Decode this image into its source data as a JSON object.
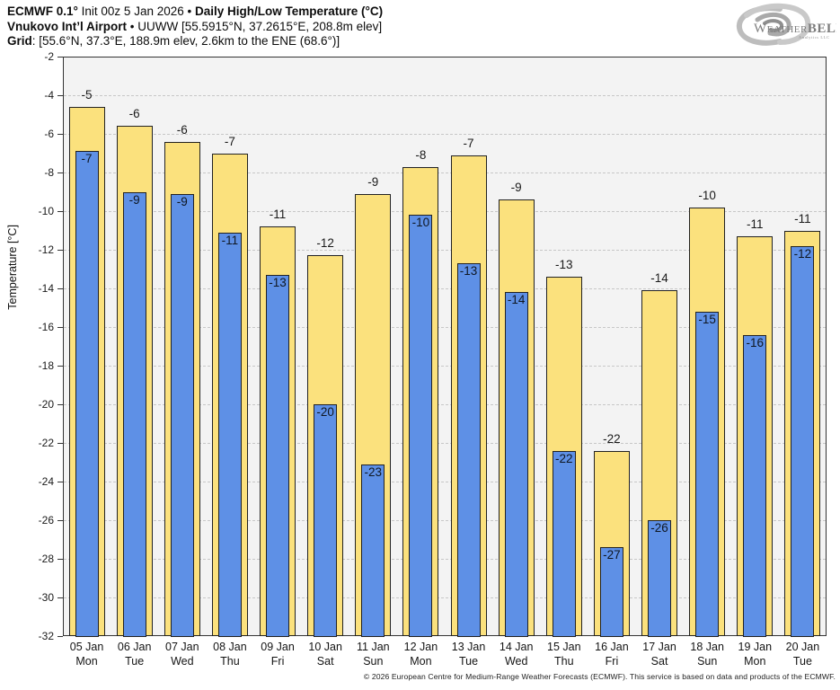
{
  "header": {
    "line1": {
      "bold1": "ECMWF 0.1°",
      "normal1": " Init 00z 5 Jan 2026 • ",
      "bold2": "Daily High/Low Temperature (°C)"
    },
    "line2": {
      "bold1": "Vnukovo Int’l Airport",
      "normal1": " • UUWW [55.5915°N, 37.2615°E, 208.8m elev]"
    },
    "line3": {
      "bold1": "Grid",
      "normal1": ": [55.6°N, 37.3°E, 188.9m elev, 2.6km to the ENE (68.6°)]"
    }
  },
  "logo": {
    "brand_w": "W",
    "brand_eather": "EATHER",
    "brand_bell": "BELL",
    "sub": "Analytics LLC"
  },
  "footer": {
    "copyright": "© 2026 European Centre for Medium-Range Weather Forecasts (ECMWF). This service is based on data and products of the ECMWF."
  },
  "chart_data": {
    "type": "bar",
    "title": "ECMWF 0.1° Init 00z 5 Jan 2026 • Daily High/Low Temperature (°C)",
    "subtitle": "Vnukovo Int’l Airport • UUWW [55.5915°N, 37.2615°E, 208.8m elev]",
    "ylabel": "Temperature [°C]",
    "xlabel": "",
    "ylim": [
      -32,
      -2
    ],
    "ytick_step": 2,
    "grid": true,
    "legend_position": "none",
    "categories": [
      "05 Jan",
      "06 Jan",
      "07 Jan",
      "08 Jan",
      "09 Jan",
      "10 Jan",
      "11 Jan",
      "12 Jan",
      "13 Jan",
      "14 Jan",
      "15 Jan",
      "16 Jan",
      "17 Jan",
      "18 Jan",
      "19 Jan",
      "20 Jan"
    ],
    "weekdays": [
      "Mon",
      "Tue",
      "Wed",
      "Thu",
      "Fri",
      "Sat",
      "Sun",
      "Mon",
      "Tue",
      "Wed",
      "Thu",
      "Fri",
      "Sat",
      "Sun",
      "Mon",
      "Tue"
    ],
    "series": [
      {
        "name": "Daily High",
        "color": "#FBE17D",
        "values": [
          -4.6,
          -5.6,
          -6.4,
          -7.0,
          -10.8,
          -12.3,
          -9.1,
          -7.7,
          -7.1,
          -9.4,
          -13.4,
          -22.4,
          -14.1,
          -9.8,
          -11.3,
          -11.0
        ],
        "labels": [
          "-5",
          "-6",
          "-6",
          "-7",
          "-11",
          "-12",
          "-9",
          "-8",
          "-7",
          "-9",
          "-13",
          "-22",
          "-14",
          "-10",
          "-11",
          "-11"
        ]
      },
      {
        "name": "Daily Low",
        "color": "#5E90E6",
        "values": [
          -6.9,
          -9.0,
          -9.1,
          -11.1,
          -13.3,
          -20.0,
          -23.1,
          -10.2,
          -12.7,
          -14.2,
          -22.4,
          -27.4,
          -26.0,
          -15.2,
          -16.4,
          -11.8
        ],
        "labels": [
          "-7",
          "-9",
          "-9",
          "-11",
          "-13",
          "-20",
          "-23",
          "-10",
          "-13",
          "-14",
          "-22",
          "-27",
          "-26",
          "-15",
          "-16",
          "-12"
        ]
      }
    ],
    "colors": {
      "outline": "#222222",
      "plot_bg": "#f3f3f3",
      "gridline": "#c7c7c7",
      "axis": "#333333"
    }
  }
}
